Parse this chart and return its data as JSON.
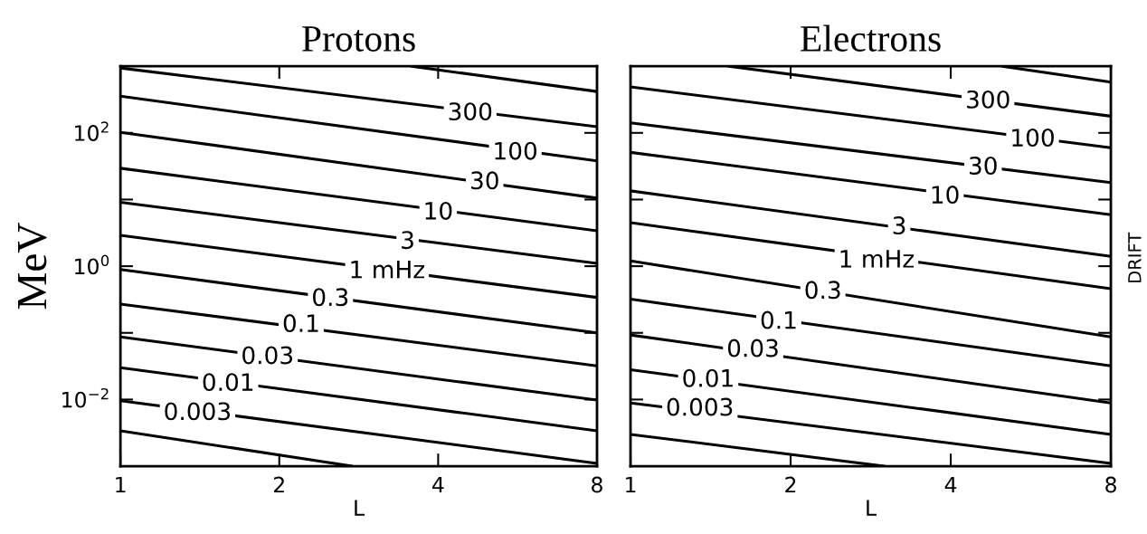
{
  "chart_data": [
    {
      "type": "line",
      "title": "Protons",
      "xlabel": "L",
      "ylabel": "MeV",
      "log": "xy",
      "grid": false,
      "xlim": [
        1,
        8
      ],
      "xticks": [
        1,
        2,
        4,
        8
      ],
      "ylim": [
        0.001,
        1000
      ],
      "yticks": [
        {
          "value": 0.01,
          "label": "10$^{−2}$"
        },
        {
          "value": 0.1,
          "label": null
        },
        {
          "value": 1,
          "label": "10$^{0}$"
        },
        {
          "value": 10,
          "label": null
        },
        {
          "value": 100,
          "label": "10$^{2}$"
        }
      ],
      "series": [
        {
          "color": "#000000",
          "x": [
            3.56,
            8
          ],
          "values": [
            1000,
            417
          ]
        },
        {
          "color": "#000000",
          "x": [
            1,
            8
          ],
          "values": [
            940,
            124
          ]
        },
        {
          "color": "#000000",
          "x": [
            1,
            8
          ],
          "values": [
            355,
            38
          ]
        },
        {
          "color": "#000000",
          "x": [
            1,
            8
          ],
          "values": [
            102,
            10.5
          ]
        },
        {
          "color": "#000000",
          "x": [
            1,
            8
          ],
          "values": [
            29.5,
            3.4
          ]
        },
        {
          "color": "#000000",
          "x": [
            1,
            8
          ],
          "values": [
            9.1,
            1.1
          ]
        },
        {
          "color": "#000000",
          "x": [
            1,
            8
          ],
          "values": [
            2.9,
            0.34
          ]
        },
        {
          "color": "#000000",
          "x": [
            1,
            8
          ],
          "values": [
            0.89,
            0.1
          ]
        },
        {
          "color": "#000000",
          "x": [
            1,
            8
          ],
          "values": [
            0.27,
            0.032
          ]
        },
        {
          "color": "#000000",
          "x": [
            1,
            8
          ],
          "values": [
            0.087,
            0.0098
          ]
        },
        {
          "color": "#000000",
          "x": [
            1,
            8
          ],
          "values": [
            0.03,
            0.0034
          ]
        },
        {
          "color": "#000000",
          "x": [
            1,
            8
          ],
          "values": [
            0.0096,
            0.0011
          ]
        },
        {
          "color": "#000000",
          "x": [
            1,
            2.75
          ],
          "values": [
            0.0034,
            0.001
          ]
        }
      ],
      "annotations": [
        {
          "text": "300",
          "x": 4.6,
          "y": 195
        },
        {
          "text": "100",
          "x": 5.6,
          "y": 50
        },
        {
          "text": "30",
          "x": 4.9,
          "y": 18
        },
        {
          "text": "10",
          "x": 4.0,
          "y": 6.3
        },
        {
          "text": "3",
          "x": 3.5,
          "y": 2.3
        },
        {
          "text": "1 mHz",
          "x": 3.2,
          "y": 0.83
        },
        {
          "text": "0.3",
          "x": 2.5,
          "y": 0.32
        },
        {
          "text": "0.1",
          "x": 2.2,
          "y": 0.13
        },
        {
          "text": "0.03",
          "x": 1.9,
          "y": 0.043
        },
        {
          "text": "0.01",
          "x": 1.6,
          "y": 0.017
        },
        {
          "text": "0.003",
          "x": 1.4,
          "y": 0.0062
        }
      ]
    },
    {
      "type": "line",
      "title": "Electrons",
      "xlabel": "L",
      "log": "xy",
      "grid": false,
      "tick_labels": "x",
      "xlim": [
        1,
        8
      ],
      "xticks": [
        1,
        2,
        4,
        8
      ],
      "ylim": [
        0.001,
        1000
      ],
      "yticks": [
        {
          "value": 0.01,
          "label": null
        },
        {
          "value": 0.1,
          "label": null
        },
        {
          "value": 1,
          "label": null
        },
        {
          "value": 10,
          "label": null
        },
        {
          "value": 100,
          "label": null
        }
      ],
      "series": [
        {
          "color": "#000000",
          "x": [
            5.0,
            8
          ],
          "values": [
            1000,
            575
          ]
        },
        {
          "color": "#000000",
          "x": [
            1.53,
            8
          ],
          "values": [
            1000,
            178
          ]
        },
        {
          "color": "#000000",
          "x": [
            1,
            8
          ],
          "values": [
            490,
            60
          ]
        },
        {
          "color": "#000000",
          "x": [
            1,
            8
          ],
          "values": [
            141,
            18
          ]
        },
        {
          "color": "#000000",
          "x": [
            1,
            8
          ],
          "values": [
            51,
            5.9
          ]
        },
        {
          "color": "#000000",
          "x": [
            1,
            8
          ],
          "values": [
            13.5,
            1.4
          ]
        },
        {
          "color": "#000000",
          "x": [
            1,
            8
          ],
          "values": [
            4.5,
            0.46
          ]
        },
        {
          "color": "#000000",
          "x": [
            1,
            8
          ],
          "values": [
            1.2,
            0.087
          ]
        },
        {
          "color": "#000000",
          "x": [
            1,
            8
          ],
          "values": [
            0.32,
            0.032
          ]
        },
        {
          "color": "#000000",
          "x": [
            1,
            8
          ],
          "values": [
            0.093,
            0.0089
          ]
        },
        {
          "color": "#000000",
          "x": [
            1,
            8
          ],
          "values": [
            0.028,
            0.003
          ]
        },
        {
          "color": "#000000",
          "x": [
            1,
            8
          ],
          "values": [
            0.0089,
            0.0011
          ]
        },
        {
          "color": "#000000",
          "x": [
            1,
            3.0
          ],
          "values": [
            0.003,
            0.001
          ]
        }
      ],
      "annotations": [
        {
          "text": "300",
          "x": 4.7,
          "y": 295
        },
        {
          "text": "100",
          "x": 5.7,
          "y": 79
        },
        {
          "text": "30",
          "x": 4.6,
          "y": 30
        },
        {
          "text": "10",
          "x": 3.9,
          "y": 11
        },
        {
          "text": "3",
          "x": 3.2,
          "y": 3.8
        },
        {
          "text": "1 mHz",
          "x": 2.9,
          "y": 1.2
        },
        {
          "text": "0.3",
          "x": 2.3,
          "y": 0.41
        },
        {
          "text": "0.1",
          "x": 1.9,
          "y": 0.145
        },
        {
          "text": "0.03",
          "x": 1.7,
          "y": 0.055
        },
        {
          "text": "0.01",
          "x": 1.4,
          "y": 0.0195
        },
        {
          "text": "0.003",
          "x": 1.35,
          "y": 0.0072
        },
        "DRIFT"
      ]
    }
  ]
}
